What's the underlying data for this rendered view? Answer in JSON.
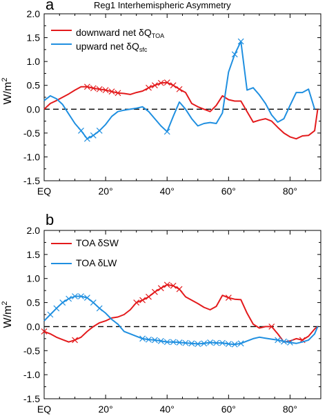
{
  "figure": {
    "title": "Reg1   Interhemispheric Asymmetry",
    "xtick_labels": [
      "EQ",
      "20°",
      "40°",
      "60°",
      "80°"
    ],
    "ylabel": "W/m",
    "ylabel_sup": "2",
    "colors": {
      "red": "#e31a1c",
      "blue": "#1f8fe0",
      "zero_line": "#000000"
    }
  },
  "chart_data": [
    {
      "panel": "a",
      "type": "line",
      "title": "Reg1   Interhemispheric Asymmetry",
      "xlabel": "",
      "ylabel": "W/m2",
      "xlim": [
        0,
        90
      ],
      "ylim": [
        -1.5,
        2.0
      ],
      "xticks": [
        0,
        20,
        40,
        60,
        80
      ],
      "yticks": [
        -1.5,
        -1.0,
        -0.5,
        0.0,
        0.5,
        1.0,
        1.5,
        2.0
      ],
      "ytick_labels": [
        "-1.5",
        "-1.0",
        "-0.5",
        "0.0",
        "0.5",
        "1.0",
        "1.5",
        "2.0"
      ],
      "zero_line": "dashed",
      "grid": false,
      "legend_position": "top-left",
      "series": [
        {
          "name": "downward net δQ",
          "name_sub": "TOA",
          "color": "#e31a1c",
          "x": [
            0,
            2,
            4,
            6,
            8,
            10,
            12,
            14,
            16,
            18,
            20,
            22,
            24,
            26,
            28,
            30,
            32,
            34,
            36,
            38,
            40,
            42,
            44,
            46,
            48,
            50,
            52,
            54,
            56,
            58,
            60,
            62,
            64,
            66,
            68,
            70,
            72,
            74,
            76,
            78,
            80,
            82,
            84,
            86,
            88
          ],
          "y": [
            0.0,
            0.12,
            0.18,
            0.25,
            0.32,
            0.4,
            0.47,
            0.47,
            0.44,
            0.42,
            0.4,
            0.37,
            0.34,
            0.33,
            0.31,
            0.35,
            0.38,
            0.45,
            0.5,
            0.55,
            0.56,
            0.5,
            0.42,
            0.35,
            0.12,
            0.05,
            0.0,
            -0.05,
            0.08,
            0.28,
            0.2,
            0.17,
            0.17,
            -0.05,
            -0.27,
            -0.23,
            -0.2,
            -0.25,
            -0.38,
            -0.5,
            -0.58,
            -0.62,
            -0.56,
            -0.55,
            -0.45
          ],
          "markers": [
            14,
            16,
            18,
            20,
            22,
            24,
            34,
            36,
            38,
            40,
            42,
            44
          ],
          "extra_points": [
            [
              89,
              0.0
            ]
          ]
        },
        {
          "name": "upward net δQ",
          "name_sub": "sfc",
          "color": "#1f8fe0",
          "x": [
            0,
            2,
            4,
            6,
            8,
            10,
            12,
            14,
            16,
            18,
            20,
            22,
            24,
            26,
            28,
            30,
            32,
            34,
            36,
            38,
            40,
            42,
            44,
            46,
            48,
            50,
            52,
            54,
            56,
            58,
            60,
            62,
            64,
            66,
            68,
            70,
            72,
            74,
            76,
            78,
            80,
            82,
            84,
            86,
            88
          ],
          "y": [
            0.18,
            0.28,
            0.22,
            0.1,
            -0.1,
            -0.3,
            -0.45,
            -0.62,
            -0.55,
            -0.45,
            -0.32,
            -0.15,
            -0.05,
            -0.02,
            0.0,
            0.02,
            0.05,
            -0.05,
            -0.2,
            -0.35,
            -0.47,
            -0.15,
            0.15,
            0.0,
            -0.2,
            -0.35,
            -0.3,
            -0.28,
            -0.3,
            -0.08,
            0.78,
            1.15,
            1.42,
            0.4,
            0.45,
            0.3,
            0.12,
            -0.12,
            -0.27,
            -0.2,
            0.08,
            0.35,
            0.35,
            0.42,
            0.0
          ],
          "markers": [
            12,
            14,
            16,
            18,
            40,
            62,
            64
          ],
          "extra_points": []
        }
      ]
    },
    {
      "panel": "b",
      "type": "line",
      "title": "",
      "xlabel": "",
      "ylabel": "W/m2",
      "xlim": [
        0,
        90
      ],
      "ylim": [
        -1.5,
        2.0
      ],
      "xticks": [
        0,
        20,
        40,
        60,
        80
      ],
      "yticks": [
        -1.5,
        -1.0,
        -0.5,
        0.0,
        0.5,
        1.0,
        1.5,
        2.0
      ],
      "ytick_labels": [
        "-1.5",
        "-1.0",
        "-0.5",
        "0.0",
        "0.5",
        "1.0",
        "1.5",
        "2.0"
      ],
      "zero_line": "dashed",
      "grid": false,
      "legend_position": "top-left",
      "series": [
        {
          "name": "TOA δSW",
          "name_sub": "",
          "color": "#e31a1c",
          "x": [
            0,
            2,
            4,
            6,
            8,
            10,
            12,
            14,
            16,
            18,
            20,
            22,
            24,
            26,
            28,
            30,
            32,
            34,
            36,
            38,
            40,
            42,
            44,
            46,
            48,
            50,
            52,
            54,
            56,
            58,
            60,
            62,
            64,
            66,
            68,
            70,
            72,
            74,
            76,
            78,
            80,
            82,
            84,
            86,
            88
          ],
          "y": [
            -0.1,
            -0.15,
            -0.22,
            -0.27,
            -0.32,
            -0.28,
            -0.22,
            -0.1,
            0.0,
            0.08,
            0.12,
            0.18,
            0.2,
            0.25,
            0.35,
            0.5,
            0.55,
            0.62,
            0.72,
            0.8,
            0.87,
            0.85,
            0.78,
            0.62,
            0.55,
            0.48,
            0.4,
            0.35,
            0.42,
            0.65,
            0.6,
            0.57,
            0.56,
            0.28,
            0.05,
            -0.03,
            0.0,
            0.0,
            -0.15,
            -0.32,
            -0.3,
            -0.25,
            -0.28,
            -0.2,
            -0.05
          ],
          "markers": [
            0,
            10,
            30,
            32,
            34,
            36,
            38,
            40,
            42,
            44,
            60,
            74,
            84
          ],
          "extra_points": [
            [
              89,
              0.0
            ]
          ]
        },
        {
          "name": "TOA δLW",
          "name_sub": "",
          "color": "#1f8fe0",
          "x": [
            0,
            2,
            4,
            6,
            8,
            10,
            12,
            14,
            16,
            18,
            20,
            22,
            24,
            26,
            28,
            30,
            32,
            34,
            36,
            38,
            40,
            42,
            44,
            46,
            48,
            50,
            52,
            54,
            56,
            58,
            60,
            62,
            64,
            66,
            68,
            70,
            72,
            74,
            76,
            78,
            80,
            82,
            84,
            86,
            88
          ],
          "y": [
            0.12,
            0.25,
            0.38,
            0.5,
            0.58,
            0.63,
            0.63,
            0.6,
            0.5,
            0.38,
            0.28,
            0.15,
            0.05,
            -0.1,
            -0.15,
            -0.2,
            -0.25,
            -0.27,
            -0.28,
            -0.3,
            -0.32,
            -0.32,
            -0.33,
            -0.34,
            -0.35,
            -0.36,
            -0.35,
            -0.33,
            -0.34,
            -0.34,
            -0.36,
            -0.37,
            -0.35,
            -0.3,
            -0.25,
            -0.22,
            -0.24,
            -0.26,
            -0.28,
            -0.31,
            -0.33,
            -0.35,
            -0.32,
            -0.28,
            -0.15
          ],
          "markers": [
            2,
            4,
            6,
            8,
            10,
            12,
            14,
            16,
            18,
            32,
            34,
            36,
            38,
            40,
            42,
            44,
            46,
            48,
            50,
            52,
            54,
            56,
            58,
            60,
            62,
            64,
            76,
            78,
            80
          ],
          "extra_points": [
            [
              89,
              0.0
            ]
          ]
        }
      ]
    }
  ]
}
